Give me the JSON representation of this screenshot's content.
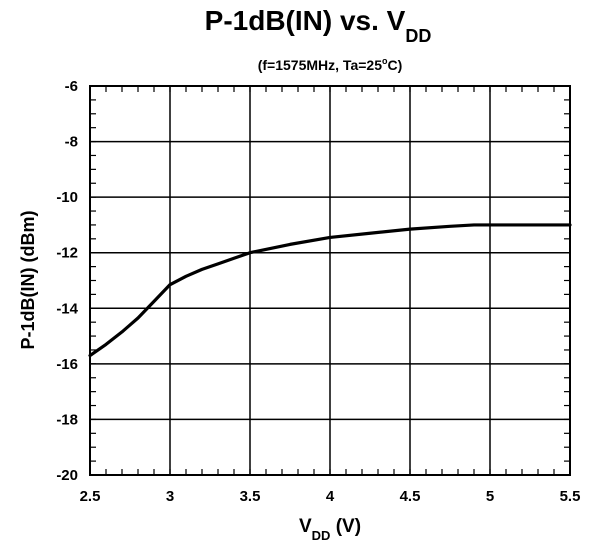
{
  "chart_data": {
    "type": "line",
    "title": {
      "main": "P-1dB(IN) vs. V",
      "main_sub": "DD"
    },
    "subtitle": {
      "prefix": "(f=1575MHz, Ta=25",
      "degree": "o",
      "suffix": "C)"
    },
    "xlabel": {
      "main": "V",
      "sub": "DD",
      "unit": " (V)"
    },
    "ylabel": "P-1dB(IN) (dBm)",
    "xlim": [
      2.5,
      5.5
    ],
    "ylim": [
      -20,
      -6
    ],
    "x_ticks": [
      2.5,
      3,
      3.5,
      4,
      4.5,
      5,
      5.5
    ],
    "x_tick_labels": [
      "2.5",
      "3",
      "3.5",
      "4",
      "4.5",
      "5",
      "5.5"
    ],
    "y_ticks": [
      -20,
      -18,
      -16,
      -14,
      -12,
      -10,
      -8,
      -6
    ],
    "y_tick_labels": [
      "-20",
      "-18",
      "-16",
      "-14",
      "-12",
      "-10",
      "-8",
      "-6"
    ],
    "grid": true,
    "series": [
      {
        "x": [
          2.5,
          2.6,
          2.7,
          2.8,
          2.9,
          3.0,
          3.1,
          3.2,
          3.3,
          3.4,
          3.5,
          3.75,
          4.0,
          4.25,
          4.5,
          4.75,
          4.9,
          5.0,
          5.25,
          5.5
        ],
        "y": [
          -15.7,
          -15.3,
          -14.85,
          -14.35,
          -13.75,
          -13.15,
          -12.85,
          -12.6,
          -12.4,
          -12.2,
          -12.0,
          -11.7,
          -11.45,
          -11.3,
          -11.15,
          -11.05,
          -11.0,
          -11.0,
          -11.0,
          -11.0
        ],
        "color": "#000000"
      }
    ]
  }
}
